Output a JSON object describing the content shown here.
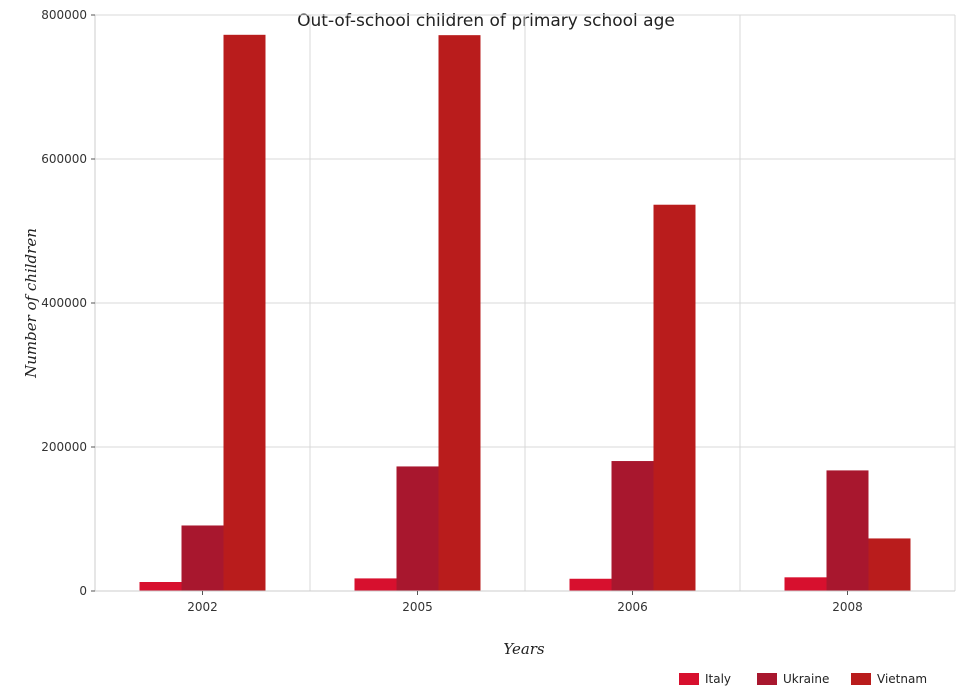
{
  "chart_data": {
    "type": "bar",
    "title": "Out-of-school children of primary school age",
    "xlabel": "Years",
    "ylabel": "Number of children",
    "categories": [
      "2002",
      "2005",
      "2006",
      "2008"
    ],
    "series": [
      {
        "name": "Italy",
        "color": "#d7102e",
        "values": [
          12500,
          17500,
          17000,
          19000
        ]
      },
      {
        "name": "Ukraine",
        "color": "#a8172e",
        "values": [
          91000,
          173000,
          180500,
          167500
        ]
      },
      {
        "name": "Vietnam",
        "color": "#b91c1c",
        "values": [
          772500,
          772000,
          536500,
          73000
        ]
      }
    ],
    "ylim": [
      0,
      800000
    ],
    "yticks": [
      0,
      200000,
      400000,
      600000,
      800000
    ],
    "ytick_labels": [
      "0",
      "200000",
      "400000",
      "600000",
      "800000"
    ],
    "grid": true,
    "legend_position": "bottom-right"
  }
}
